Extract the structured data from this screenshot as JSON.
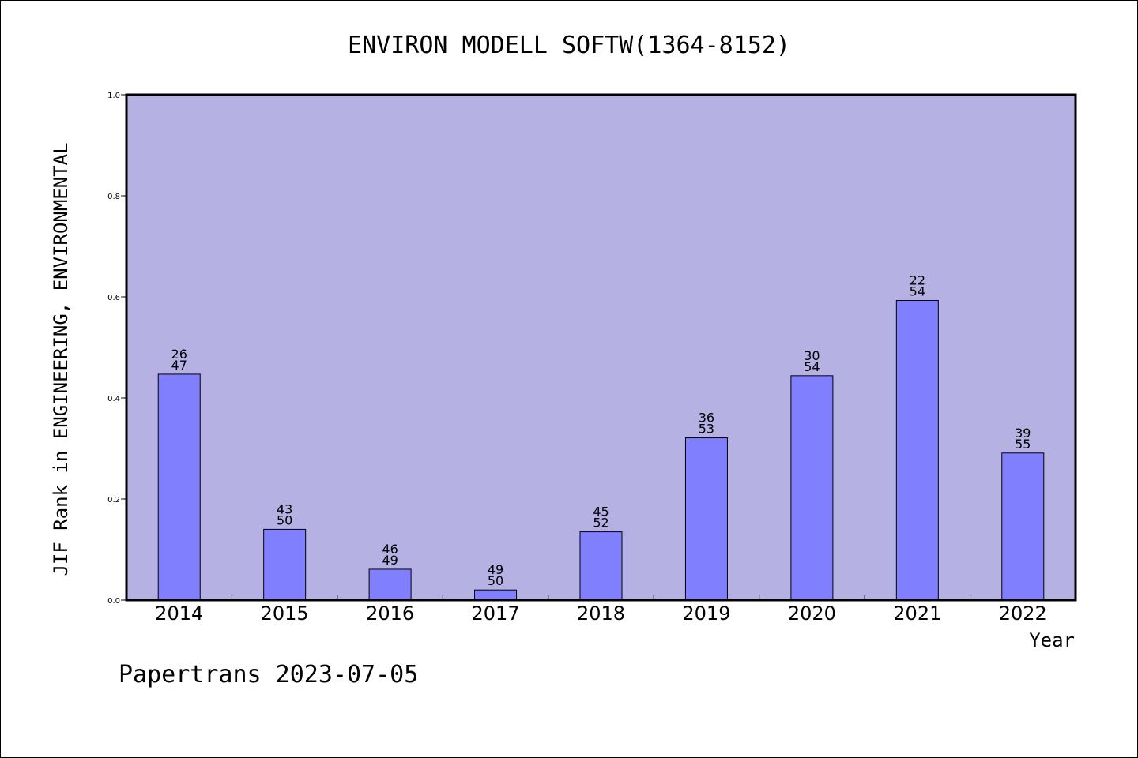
{
  "chart_data": {
    "type": "bar",
    "title": "ENVIRON MODELL SOFTW(1364-8152)",
    "xlabel": "Year",
    "ylabel": "JIF Rank in ENGINEERING, ENVIRONMENTAL",
    "ylim": [
      0,
      1.0
    ],
    "yticks": [
      "0.0",
      "0.2",
      "0.4",
      "0.6",
      "0.8",
      "1.0"
    ],
    "categories": [
      "2014",
      "2015",
      "2016",
      "2017",
      "2018",
      "2019",
      "2020",
      "2021",
      "2022"
    ],
    "values": [
      0.447,
      0.14,
      0.061,
      0.02,
      0.135,
      0.321,
      0.444,
      0.593,
      0.291
    ],
    "rank": [
      "26",
      "43",
      "46",
      "49",
      "45",
      "36",
      "30",
      "22",
      "39"
    ],
    "total": [
      "47",
      "50",
      "49",
      "50",
      "52",
      "53",
      "54",
      "54",
      "55"
    ],
    "grid": false,
    "colors": {
      "plot_background": "#b6b1e3",
      "bar_fill": "#8080ff"
    }
  },
  "footer": "Papertrans 2023-07-05"
}
